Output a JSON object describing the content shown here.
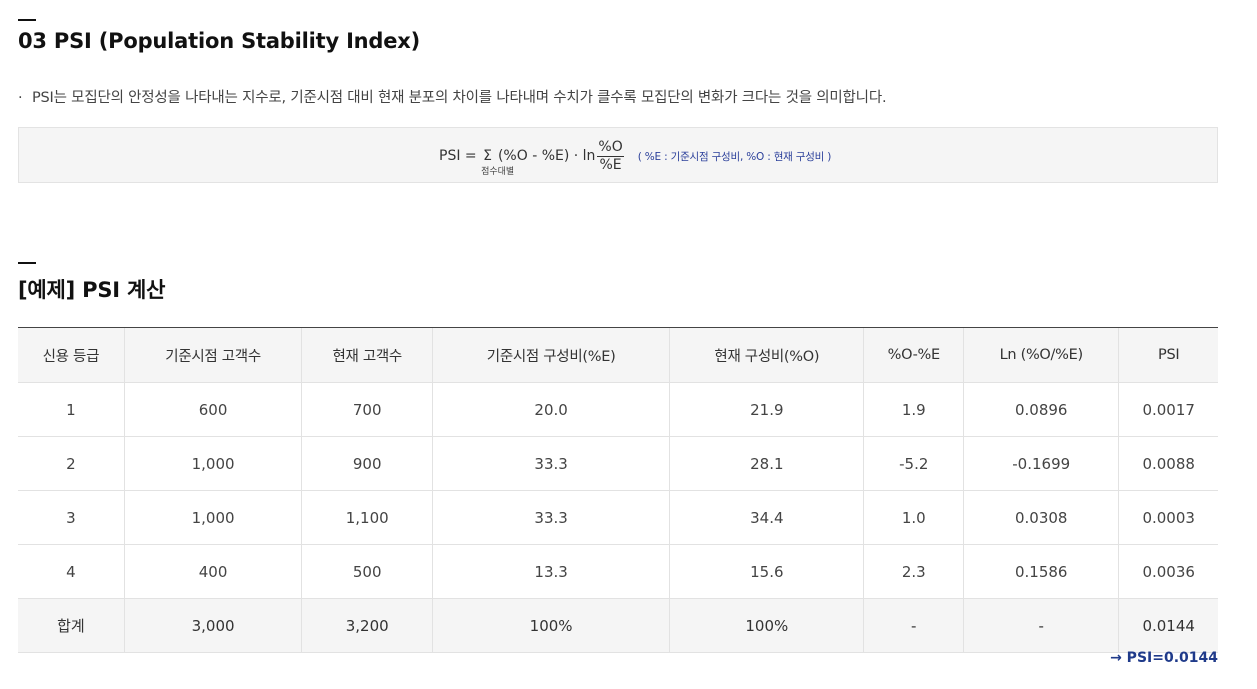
{
  "section1": {
    "title": "03 PSI (Population Stability Index)",
    "bullet_mark": "·",
    "description": "PSI는 모집단의 안정성을 나타내는 지수로, 기준시점 대비 현재 분포의 차이를 나타내며 수치가 클수록 모집단의 변화가 크다는 것을 의미합니다.",
    "formula": {
      "lhs": "PSI = ",
      "sigma": "Σ",
      "sigma_sub": "점수대별",
      "body": "(%O - %E) · ln",
      "frac_num": "%O",
      "frac_den": "%E",
      "note": "( %E : 기준시점 구성비, %O : 현재 구성비 )"
    }
  },
  "section2": {
    "title": "[예제] PSI 계산",
    "table": {
      "headers": [
        "신용 등급",
        "기준시점 고객수",
        "현재 고객수",
        "기준시점 구성비(%E)",
        "현재 구성비(%O)",
        "%O-%E",
        "Ln (%O/%E)",
        "PSI"
      ],
      "rows": [
        [
          "1",
          "600",
          "700",
          "20.0",
          "21.9",
          "1.9",
          "0.0896",
          "0.0017"
        ],
        [
          "2",
          "1,000",
          "900",
          "33.3",
          "28.1",
          "-5.2",
          "-0.1699",
          "0.0088"
        ],
        [
          "3",
          "1,000",
          "1,100",
          "33.3",
          "34.4",
          "1.0",
          "0.0308",
          "0.0003"
        ],
        [
          "4",
          "400",
          "500",
          "13.3",
          "15.6",
          "2.3",
          "0.1586",
          "0.0036"
        ]
      ],
      "total": [
        "합계",
        "3,000",
        "3,200",
        "100%",
        "100%",
        "-",
        "-",
        "0.0144"
      ]
    },
    "result": "→ PSI=0.0144"
  }
}
